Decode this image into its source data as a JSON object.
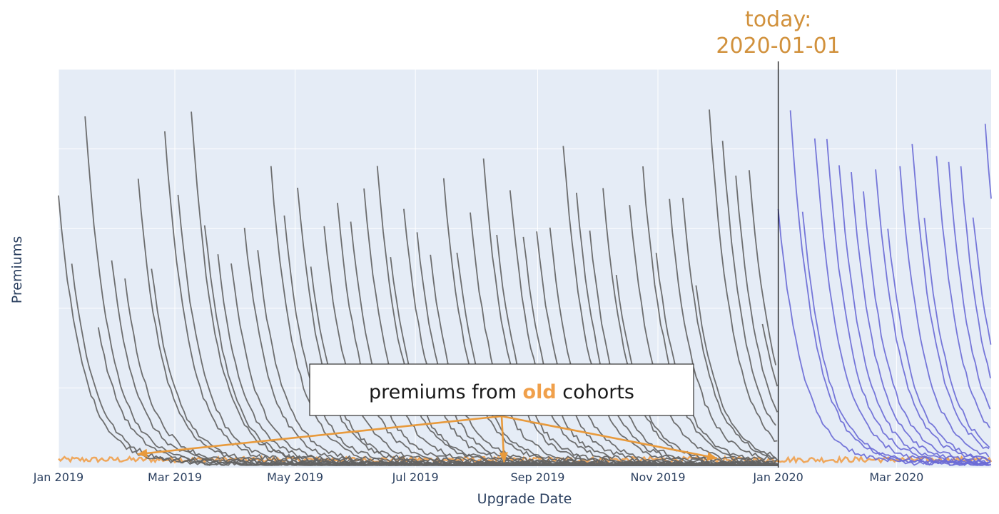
{
  "chart_data": {
    "type": "line",
    "xlabel": "Upgrade Date",
    "ylabel": "Premiums",
    "x_range": [
      "2019-01-01",
      "2020-04-18"
    ],
    "y_range": [
      0,
      100
    ],
    "y_ticks_labeled": false,
    "grid": true,
    "legend": "none",
    "x_tick_labels": [
      {
        "date": "2019-01-01",
        "label": "Jan 2019"
      },
      {
        "date": "2019-03-01",
        "label": "Mar 2019"
      },
      {
        "date": "2019-05-01",
        "label": "May 2019"
      },
      {
        "date": "2019-07-01",
        "label": "Jul 2019"
      },
      {
        "date": "2019-09-01",
        "label": "Sep 2019"
      },
      {
        "date": "2019-11-01",
        "label": "Nov 2019"
      },
      {
        "date": "2020-01-01",
        "label": "Jan 2020"
      },
      {
        "date": "2020-03-01",
        "label": "Mar 2020"
      }
    ],
    "series": [
      {
        "color": "#636363",
        "first_cohort": "2019-01-01",
        "last_cohort": "2019-12-24",
        "peaks": [
          66,
          49,
          86,
          33,
          50,
          45,
          70,
          48,
          82,
          66,
          87,
          59,
          51,
          49,
          58,
          52,
          73,
          61,
          68,
          48,
          58,
          64,
          60,
          68,
          74,
          51,
          63,
          57,
          51,
          70,
          52,
          62,
          75,
          56,
          68,
          56,
          57,
          58,
          79,
          67,
          57,
          68,
          46,
          64,
          73,
          52,
          65,
          65,
          43,
          88,
          80,
          71,
          73,
          34
        ]
      },
      {
        "color": "#6b6bd6",
        "first_cohort": "2020-01-01",
        "last_cohort": "2020-04-15",
        "peaks": [
          63,
          87,
          62,
          81,
          80,
          74,
          72,
          67,
          73,
          58,
          73,
          79,
          61,
          76,
          74,
          73,
          61,
          84
        ]
      },
      {
        "color": "#f0a04b",
        "description": "old cohorts",
        "level": 2
      }
    ],
    "annotations": {
      "today": {
        "date": "2020-01-01",
        "label_line1": "today:",
        "label_line2": "2020-01-01",
        "color": "#d1913c"
      },
      "callout": {
        "text_before": "premiums from ",
        "text_highlight": "old",
        "text_after": " cohorts",
        "arrow_targets": [
          {
            "date": "2019-02-10",
            "value": 3
          },
          {
            "date": "2019-08-15",
            "value": 1
          },
          {
            "date": "2019-12-01",
            "value": 2
          }
        ]
      }
    }
  }
}
